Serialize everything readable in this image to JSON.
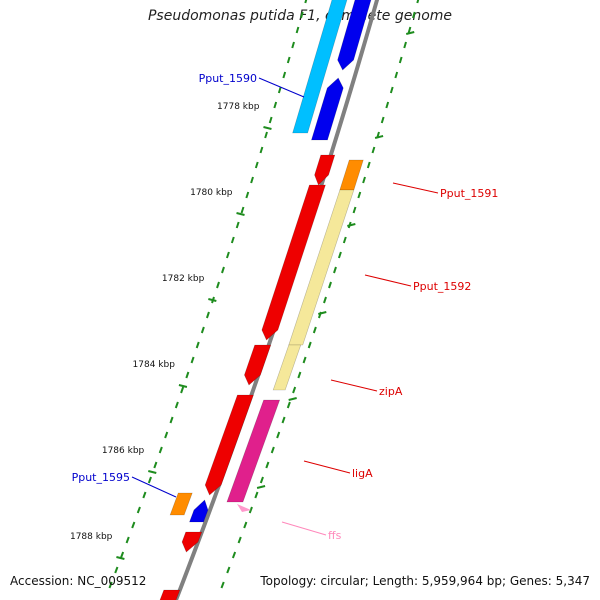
{
  "title": "Pseudomonas putida F1, complete genome",
  "footer": {
    "accession": "Accession: NC_009512",
    "summary": "Topology: circular; Length: 5,959,964 bp; Genes: 5,347"
  },
  "axis": {
    "unit": "kbp",
    "ticks": [
      {
        "value": 1778,
        "label": "1778 kbp"
      },
      {
        "value": 1780,
        "label": "1780 kbp"
      },
      {
        "value": 1782,
        "label": "1782 kbp"
      },
      {
        "value": 1784,
        "label": "1784 kbp"
      },
      {
        "value": 1786,
        "label": "1786 kbp"
      },
      {
        "value": 1788,
        "label": "1788 kbp"
      }
    ]
  },
  "colors": {
    "backbone": "#808080",
    "forward_cds": "#0000ee",
    "forward_light": "#00bfff",
    "reverse_cds": "#ee0000",
    "orange": "#ff8c00",
    "pale_yellow": "#f5e89a",
    "magenta": "#e0208c",
    "rna": "#ff99cc",
    "dots": "#1e8c1e",
    "label_blue": "#0000cc",
    "label_red": "#dd0000",
    "label_pink": "#ff88bb"
  },
  "labels": [
    {
      "text": "Pput_1590",
      "color": "label_blue"
    },
    {
      "text": "Pput_1591",
      "color": "label_red"
    },
    {
      "text": "Pput_1592",
      "color": "label_red"
    },
    {
      "text": "zipA",
      "color": "label_red"
    },
    {
      "text": "ligA",
      "color": "label_red"
    },
    {
      "text": "Pput_1595",
      "color": "label_blue"
    },
    {
      "text": "ffs",
      "color": "label_pink"
    }
  ]
}
